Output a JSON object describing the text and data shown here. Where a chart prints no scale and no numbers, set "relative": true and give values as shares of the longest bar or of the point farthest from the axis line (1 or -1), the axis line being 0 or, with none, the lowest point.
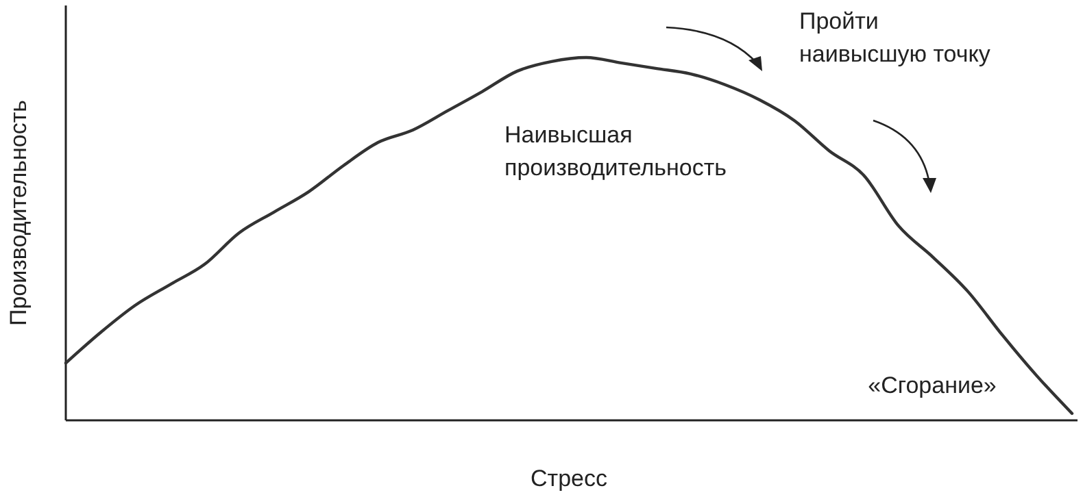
{
  "chart_data": {
    "type": "line",
    "relative": true,
    "xlabel": "Стресс",
    "ylabel": "Производительность",
    "categories": [
      null,
      null,
      null,
      null,
      null,
      null,
      null,
      null,
      null,
      null,
      null,
      null,
      null,
      null,
      null,
      null,
      null,
      null,
      null,
      null,
      null,
      null,
      null,
      null,
      null,
      null,
      null,
      null,
      null,
      null
    ],
    "series": [
      {
        "color": "#333333",
        "values": [
          0.158,
          0.242,
          0.317,
          0.374,
          0.43,
          0.517,
          0.574,
          0.63,
          0.702,
          0.766,
          0.8,
          0.853,
          0.906,
          0.962,
          0.989,
          1,
          0.985,
          0.97,
          0.955,
          0.925,
          0.883,
          0.826,
          0.743,
          0.675,
          0.536,
          0.449,
          0.355,
          0.234,
          0.121,
          0.019
        ]
      }
    ],
    "annotations": [
      "Наивысшая\nпроизводительность",
      "Пройти\nнаивысшую точку",
      "«Сгорание»"
    ],
    "marker": "none",
    "line_style": "solid"
  }
}
